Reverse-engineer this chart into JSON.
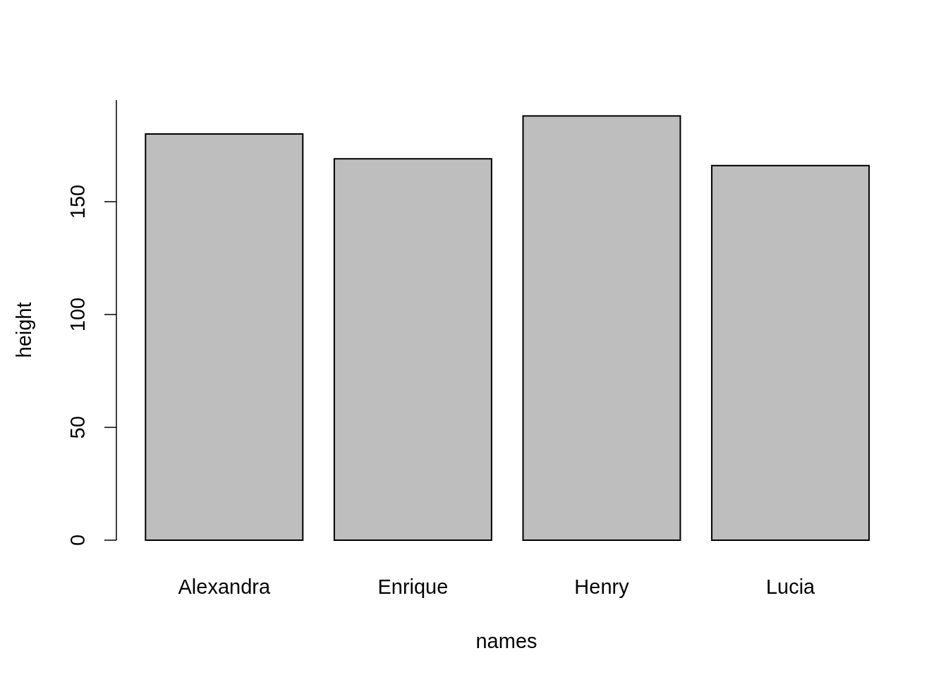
{
  "chart_data": {
    "type": "bar",
    "xlabel": "names",
    "ylabel": "height",
    "categories": [
      "Alexandra",
      "Enrique",
      "Henry",
      "Lucia"
    ],
    "values": [
      180,
      169,
      188,
      166
    ],
    "color": "#bebebe",
    "ylim": [
      0,
      195
    ],
    "yticks": [
      0,
      50,
      100,
      150
    ],
    "grid": false
  }
}
